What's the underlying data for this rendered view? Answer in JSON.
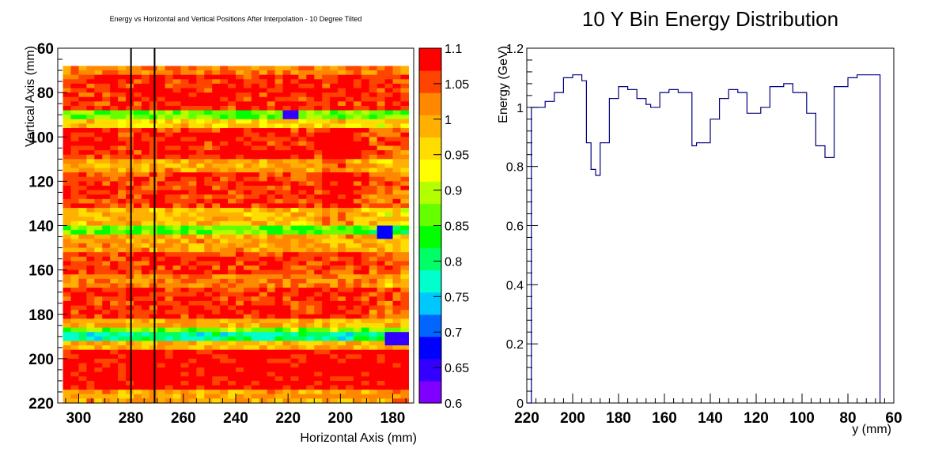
{
  "chart_data": [
    {
      "type": "heatmap",
      "title": "Energy vs Horizontal and Vertical Positions After Interpolation - 10 Degree Tilted",
      "xlabel": "Horizontal Axis (mm)",
      "ylabel": "Vertical Axis (mm)",
      "xlim": [
        308,
        172
      ],
      "ylim": [
        220,
        60
      ],
      "x_ticks": [
        "300",
        "280",
        "260",
        "240",
        "220",
        "200",
        "180"
      ],
      "y_ticks": [
        "60",
        "80",
        "100",
        "120",
        "140",
        "160",
        "180",
        "200",
        "220"
      ],
      "z_range": [
        0.6,
        1.1
      ],
      "colorbar_ticks": [
        "0.6",
        "0.65",
        "0.7",
        "0.75",
        "0.8",
        "0.85",
        "0.9",
        "0.95",
        "1",
        "1.05",
        "1.1"
      ],
      "colorbar_colors": [
        "#8000ff",
        "#3300ff",
        "#0000ff",
        "#0066ff",
        "#00c8ff",
        "#00ffcc",
        "#00ff66",
        "#00ff00",
        "#66ff00",
        "#b3ff00",
        "#ffff00",
        "#ffdd00",
        "#ffb000",
        "#ff8800",
        "#ff4400",
        "#ff0000"
      ],
      "x_bins": [
        306,
        176
      ],
      "y_bins": [
        68,
        220
      ],
      "vertical_lines_x": [
        280,
        271
      ],
      "row_profile": [
        {
          "y_from": 68,
          "y_to": 72,
          "level": 1.02
        },
        {
          "y_from": 72,
          "y_to": 89,
          "level": 1.07
        },
        {
          "y_from": 89,
          "y_to": 93,
          "level": 0.86
        },
        {
          "y_from": 93,
          "y_to": 96,
          "level": 0.97
        },
        {
          "y_from": 96,
          "y_to": 111,
          "level": 1.07
        },
        {
          "y_from": 111,
          "y_to": 117,
          "level": 1.0
        },
        {
          "y_from": 117,
          "y_to": 133,
          "level": 1.06
        },
        {
          "y_from": 133,
          "y_to": 140,
          "level": 0.98
        },
        {
          "y_from": 140,
          "y_to": 145,
          "level": 0.86
        },
        {
          "y_from": 145,
          "y_to": 152,
          "level": 1.0
        },
        {
          "y_from": 152,
          "y_to": 163,
          "level": 1.06
        },
        {
          "y_from": 163,
          "y_to": 168,
          "level": 1.02
        },
        {
          "y_from": 168,
          "y_to": 182,
          "level": 1.07
        },
        {
          "y_from": 182,
          "y_to": 186,
          "level": 0.99
        },
        {
          "y_from": 186,
          "y_to": 189,
          "level": 0.88
        },
        {
          "y_from": 189,
          "y_to": 193,
          "level": 0.79
        },
        {
          "y_from": 193,
          "y_to": 197,
          "level": 0.99
        },
        {
          "y_from": 197,
          "y_to": 214,
          "level": 1.09
        },
        {
          "y_from": 214,
          "y_to": 220,
          "level": 1.0
        }
      ],
      "low_spots": [
        {
          "x": 221,
          "y": 90,
          "level": 0.64
        },
        {
          "x": 180,
          "y": 191,
          "level": 0.66
        },
        {
          "x": 184,
          "y": 143,
          "level": 0.68
        }
      ]
    },
    {
      "type": "line",
      "title": "10 Y Bin Energy Distribution",
      "xlabel": "y (mm)",
      "ylabel": "Energy (GeV)",
      "xlim": [
        220,
        60
      ],
      "ylim": [
        0,
        1.2
      ],
      "x_ticks": [
        "220",
        "200",
        "180",
        "160",
        "140",
        "120",
        "100",
        "80",
        "60"
      ],
      "y_ticks": [
        "0",
        "0.2",
        "0.4",
        "0.6",
        "0.8",
        "1",
        "1.2"
      ],
      "line_color": "#000080",
      "series": [
        {
          "x": [
            220,
            218,
            212,
            208,
            204,
            200,
            196,
            194,
            192,
            190,
            188,
            184,
            180,
            176,
            172,
            168,
            166,
            162,
            158,
            154,
            148,
            146,
            140,
            136,
            132,
            128,
            124,
            118,
            114,
            108,
            104,
            98,
            94,
            90,
            86,
            80,
            76,
            72,
            68,
            66
          ],
          "y": [
            0,
            1.0,
            1.02,
            1.05,
            1.1,
            1.11,
            1.09,
            0.88,
            0.79,
            0.77,
            0.88,
            1.03,
            1.07,
            1.06,
            1.03,
            1.01,
            1.0,
            1.05,
            1.06,
            1.05,
            0.87,
            0.88,
            0.96,
            1.03,
            1.06,
            1.05,
            0.98,
            1.0,
            1.07,
            1.08,
            1.05,
            0.98,
            0.87,
            0.83,
            1.07,
            1.1,
            1.11,
            1.11,
            1.11,
            0
          ]
        }
      ]
    }
  ]
}
